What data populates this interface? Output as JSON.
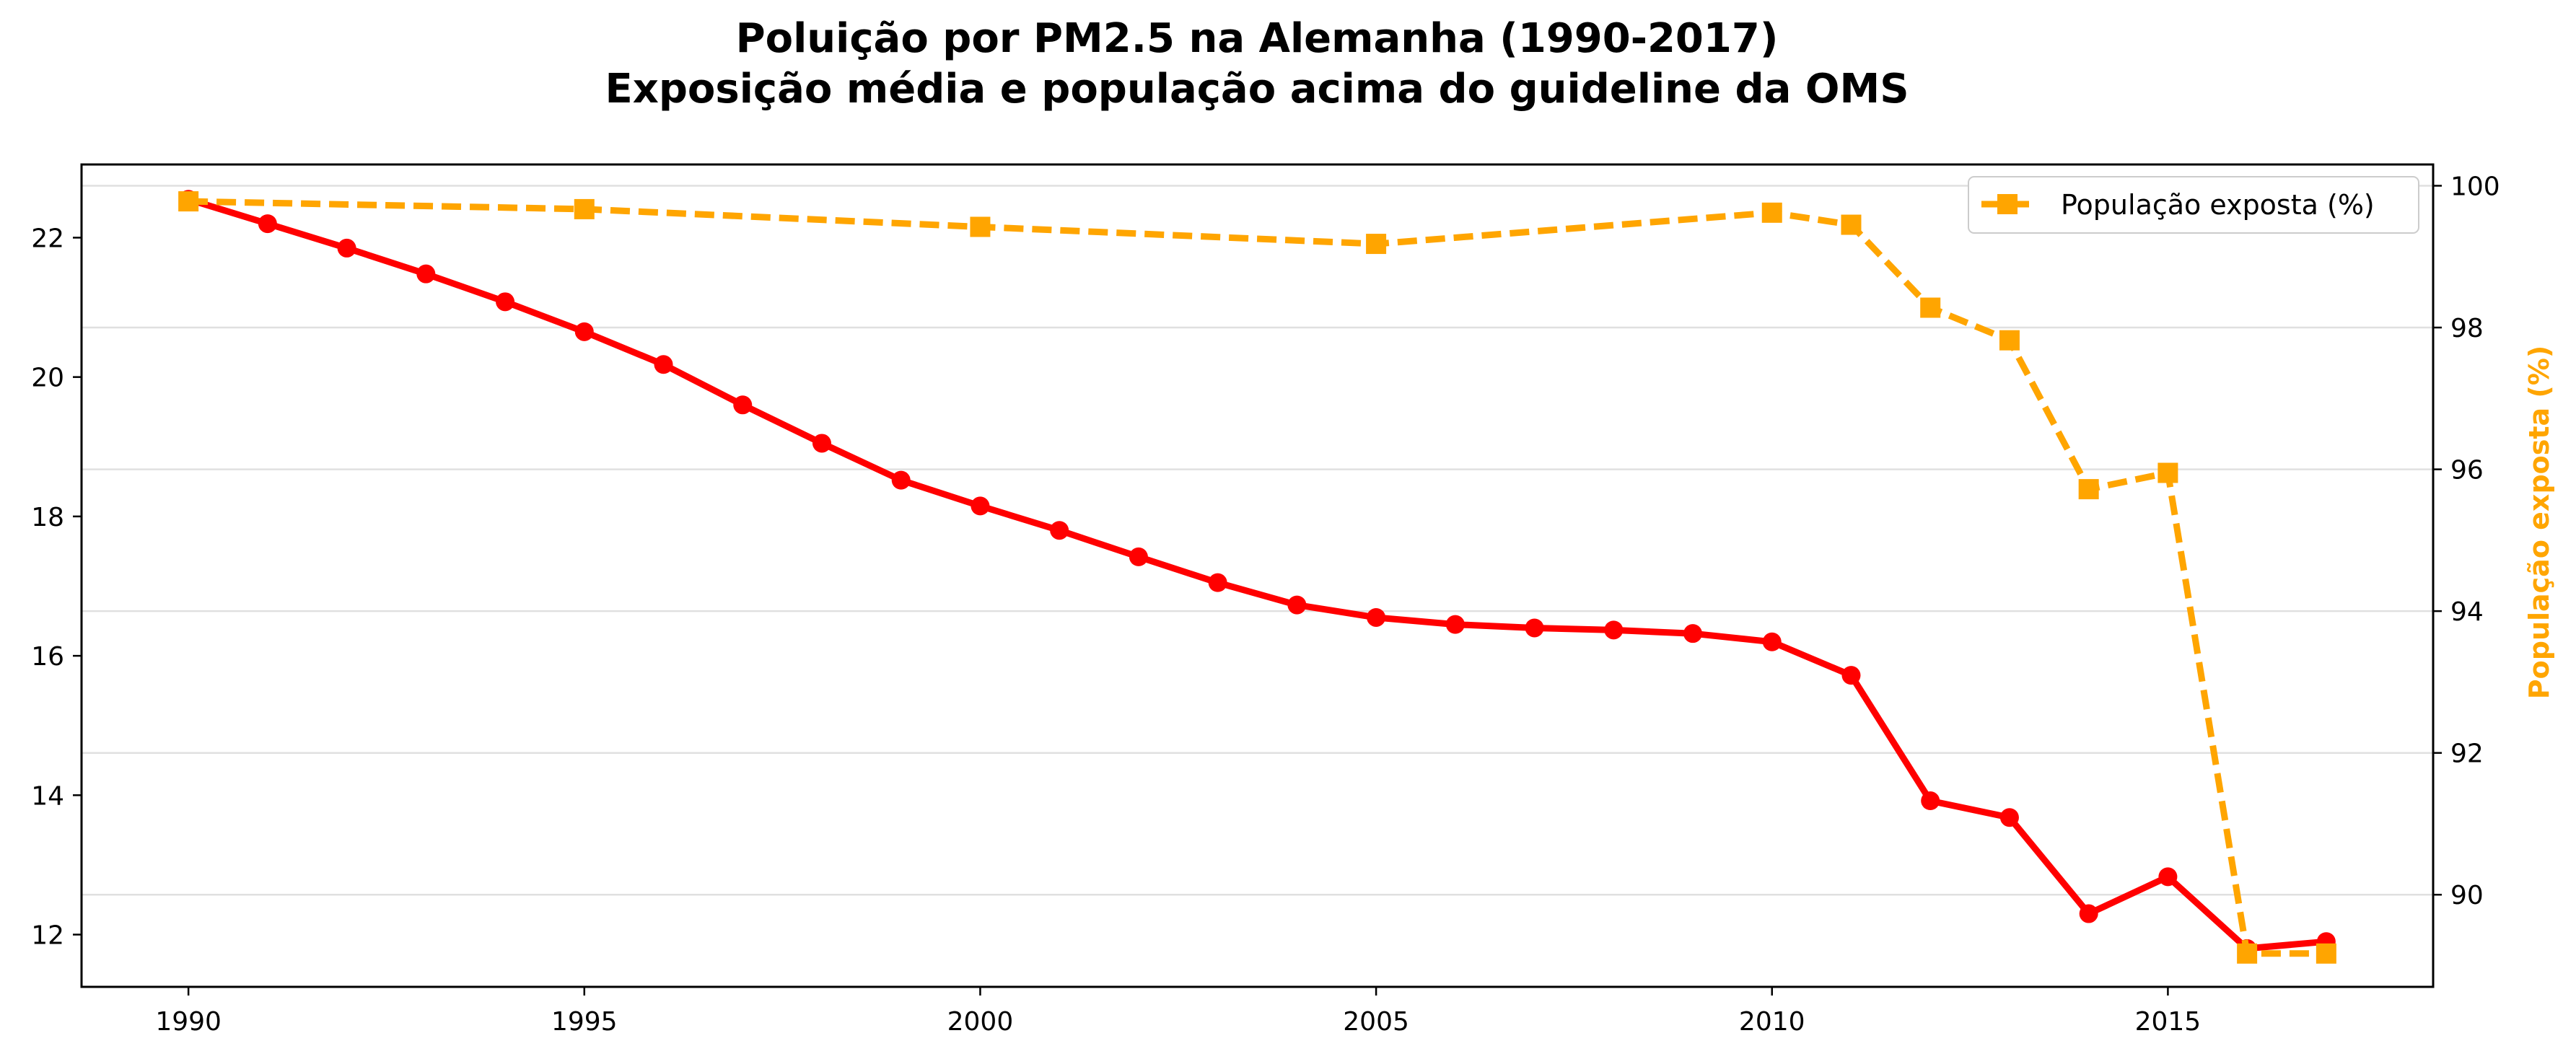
{
  "chart_data": {
    "type": "line",
    "title": "Poluição por PM2.5 na Alemanha (1990-2017)",
    "subtitle": "Exposição média e população acima do guideline da OMS",
    "xlabel": "",
    "ylabel": "",
    "y2label": "População exposta (%)",
    "x_ticks": [
      "1990",
      "1995",
      "2000",
      "2005",
      "2010",
      "2015"
    ],
    "x_tick_values": [
      1990,
      1995,
      2000,
      2005,
      2010,
      2015
    ],
    "xlim": [
      1988.65,
      2018.35
    ],
    "y_ticks": [
      "12",
      "14",
      "16",
      "18",
      "20",
      "22"
    ],
    "y_tick_values": [
      12,
      14,
      16,
      18,
      20,
      22
    ],
    "ylim": [
      11.25,
      23.05
    ],
    "y2_ticks": [
      "90",
      "92",
      "94",
      "96",
      "98",
      "100"
    ],
    "y2_tick_values": [
      90,
      92,
      94,
      96,
      98,
      100
    ],
    "y2lim": [
      88.7,
      100.3
    ],
    "grid": "horizontal, right axis",
    "legend_position": "top-right",
    "series": [
      {
        "axis": "left",
        "color": "#ff0000",
        "style": "solid",
        "marker": "circle",
        "x": [
          1990,
          1991,
          1992,
          1993,
          1994,
          1995,
          1996,
          1997,
          1998,
          1999,
          2000,
          2001,
          2002,
          2003,
          2004,
          2005,
          2006,
          2007,
          2008,
          2009,
          2010,
          2011,
          2012,
          2013,
          2014,
          2015,
          2016,
          2017
        ],
        "values": [
          22.55,
          22.2,
          21.85,
          21.48,
          21.08,
          20.65,
          20.18,
          19.6,
          19.05,
          18.52,
          18.15,
          17.8,
          17.42,
          17.05,
          16.73,
          16.55,
          16.45,
          16.4,
          16.37,
          16.32,
          16.2,
          15.72,
          13.92,
          13.68,
          12.3,
          12.83,
          11.8,
          11.9
        ]
      },
      {
        "name": "População exposta (%)",
        "axis": "right",
        "color": "#ffa500",
        "style": "dashed",
        "marker": "square",
        "x": [
          1990,
          1995,
          2000,
          2005,
          2010,
          2011,
          2012,
          2013,
          2014,
          2015,
          2016,
          2017
        ],
        "values": [
          99.78,
          99.67,
          99.42,
          99.18,
          99.62,
          99.45,
          98.28,
          97.82,
          95.72,
          95.95,
          89.17,
          89.17
        ]
      }
    ]
  }
}
